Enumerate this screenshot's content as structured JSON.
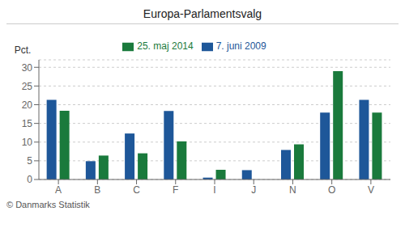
{
  "chart_data": {
    "type": "bar",
    "title": "Europa-Parlamentsvalg",
    "ylabel": "Pct.",
    "annotations": [
      "© Danmarks Statistik"
    ],
    "categories": [
      "A",
      "B",
      "C",
      "F",
      "I",
      "J",
      "N",
      "O",
      "V"
    ],
    "series": [
      {
        "name": "7. juni 2009",
        "color": "#1e5799",
        "values": [
          21.3,
          4.9,
          12.3,
          18.3,
          0.5,
          2.5,
          7.9,
          17.9,
          21.3
        ]
      },
      {
        "name": "25. maj 2014",
        "color": "#1a7a3c",
        "values": [
          18.4,
          6.4,
          7.0,
          10.2,
          2.6,
          0.0,
          9.4,
          29.0,
          17.9
        ]
      }
    ],
    "ylim": [
      0,
      32
    ],
    "yticks": [
      0,
      5,
      10,
      15,
      20,
      25,
      30
    ],
    "grid": true,
    "legend": "top"
  }
}
